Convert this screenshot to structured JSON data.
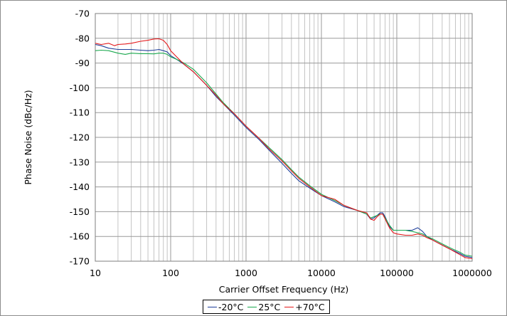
{
  "chart_data": {
    "type": "line",
    "title": "",
    "xlabel": "Carrier Offset Frequency (Hz)",
    "ylabel": "Phase Noise (dBc/Hz)",
    "x_scale": "log",
    "xlim": [
      10,
      1000000
    ],
    "ylim": [
      -170,
      -70
    ],
    "x_ticks": [
      10,
      100,
      1000,
      10000,
      100000,
      1000000
    ],
    "x_tick_labels": [
      "10",
      "100",
      "1000",
      "10000",
      "100000",
      "1000000"
    ],
    "y_ticks": [
      -70,
      -80,
      -90,
      -100,
      -110,
      -120,
      -130,
      -140,
      -150,
      -160,
      -170
    ],
    "y_tick_labels": [
      "-70",
      "-80",
      "-90",
      "-100",
      "-110",
      "-120",
      "-130",
      "-140",
      "-150",
      "-160",
      "-170"
    ],
    "grid": true,
    "legend_position": "bottom-center",
    "series": [
      {
        "name": "-20°C",
        "color": "#1f3f9a",
        "points": [
          [
            10,
            -82.5
          ],
          [
            12,
            -83
          ],
          [
            15,
            -84
          ],
          [
            20,
            -84.5
          ],
          [
            30,
            -84.5
          ],
          [
            40,
            -84.8
          ],
          [
            50,
            -85
          ],
          [
            60,
            -84.8
          ],
          [
            70,
            -84.5
          ],
          [
            80,
            -85
          ],
          [
            90,
            -85.5
          ],
          [
            100,
            -87
          ],
          [
            120,
            -88.5
          ],
          [
            150,
            -90.5
          ],
          [
            200,
            -93.5
          ],
          [
            300,
            -99
          ],
          [
            400,
            -103.5
          ],
          [
            500,
            -106.5
          ],
          [
            700,
            -111
          ],
          [
            1000,
            -116
          ],
          [
            1500,
            -121
          ],
          [
            2000,
            -125
          ],
          [
            3000,
            -130.5
          ],
          [
            4000,
            -134.5
          ],
          [
            5000,
            -137.5
          ],
          [
            7000,
            -140.5
          ],
          [
            10000,
            -143.5
          ],
          [
            15000,
            -146
          ],
          [
            20000,
            -148
          ],
          [
            30000,
            -149.5
          ],
          [
            40000,
            -151
          ],
          [
            45000,
            -153
          ],
          [
            50000,
            -152.5
          ],
          [
            55000,
            -151.5
          ],
          [
            60000,
            -150.5
          ],
          [
            65000,
            -150.5
          ],
          [
            70000,
            -152
          ],
          [
            80000,
            -156
          ],
          [
            90000,
            -157.5
          ],
          [
            100000,
            -157.5
          ],
          [
            130000,
            -157.5
          ],
          [
            160000,
            -157.5
          ],
          [
            190000,
            -156.5
          ],
          [
            220000,
            -158
          ],
          [
            250000,
            -160
          ],
          [
            300000,
            -161.5
          ],
          [
            400000,
            -163.5
          ],
          [
            500000,
            -165
          ],
          [
            700000,
            -167
          ],
          [
            800000,
            -168
          ],
          [
            1000000,
            -168.5
          ]
        ]
      },
      {
        "name": "25°C",
        "color": "#1aa84e",
        "points": [
          [
            10,
            -85
          ],
          [
            12,
            -84.8
          ],
          [
            15,
            -85
          ],
          [
            20,
            -86
          ],
          [
            25,
            -86.5
          ],
          [
            30,
            -86
          ],
          [
            40,
            -86.2
          ],
          [
            50,
            -86.2
          ],
          [
            60,
            -86.3
          ],
          [
            70,
            -86
          ],
          [
            80,
            -86
          ],
          [
            90,
            -86.5
          ],
          [
            100,
            -87.5
          ],
          [
            120,
            -88.5
          ],
          [
            150,
            -90
          ],
          [
            200,
            -92.5
          ],
          [
            300,
            -98
          ],
          [
            400,
            -102.5
          ],
          [
            500,
            -106
          ],
          [
            700,
            -110.5
          ],
          [
            1000,
            -115.5
          ],
          [
            1500,
            -120.5
          ],
          [
            2000,
            -124
          ],
          [
            3000,
            -129
          ],
          [
            4000,
            -133
          ],
          [
            5000,
            -136
          ],
          [
            7000,
            -139.5
          ],
          [
            10000,
            -143
          ],
          [
            15000,
            -145.5
          ],
          [
            20000,
            -147.5
          ],
          [
            30000,
            -149.5
          ],
          [
            40000,
            -151
          ],
          [
            45000,
            -152.5
          ],
          [
            50000,
            -152
          ],
          [
            55000,
            -151.5
          ],
          [
            60000,
            -151
          ],
          [
            65000,
            -151
          ],
          [
            70000,
            -152.5
          ],
          [
            80000,
            -155.5
          ],
          [
            90000,
            -157.5
          ],
          [
            100000,
            -157.5
          ],
          [
            130000,
            -157.5
          ],
          [
            160000,
            -158
          ],
          [
            190000,
            -158.5
          ],
          [
            220000,
            -159
          ],
          [
            250000,
            -160
          ],
          [
            300000,
            -161
          ],
          [
            400000,
            -163
          ],
          [
            500000,
            -164.5
          ],
          [
            700000,
            -166.5
          ],
          [
            800000,
            -167.5
          ],
          [
            1000000,
            -168
          ]
        ]
      },
      {
        "name": "+70°C",
        "color": "#e41a1c",
        "points": [
          [
            10,
            -82
          ],
          [
            12,
            -82.5
          ],
          [
            15,
            -82
          ],
          [
            18,
            -83
          ],
          [
            20,
            -82.5
          ],
          [
            25,
            -82.3
          ],
          [
            30,
            -82
          ],
          [
            40,
            -81.2
          ],
          [
            50,
            -80.8
          ],
          [
            60,
            -80.3
          ],
          [
            70,
            -80.2
          ],
          [
            80,
            -80.8
          ],
          [
            90,
            -82.5
          ],
          [
            100,
            -85
          ],
          [
            120,
            -87.5
          ],
          [
            150,
            -90.5
          ],
          [
            200,
            -93.5
          ],
          [
            300,
            -99
          ],
          [
            400,
            -103
          ],
          [
            500,
            -106.5
          ],
          [
            700,
            -110.5
          ],
          [
            1000,
            -115.5
          ],
          [
            1500,
            -120.5
          ],
          [
            2000,
            -124.5
          ],
          [
            3000,
            -129.5
          ],
          [
            4000,
            -133.5
          ],
          [
            5000,
            -136.5
          ],
          [
            7000,
            -140
          ],
          [
            10000,
            -143.5
          ],
          [
            15000,
            -145
          ],
          [
            20000,
            -147.5
          ],
          [
            30000,
            -149.5
          ],
          [
            40000,
            -150.5
          ],
          [
            45000,
            -153
          ],
          [
            50000,
            -153.5
          ],
          [
            55000,
            -152
          ],
          [
            60000,
            -151
          ],
          [
            65000,
            -151
          ],
          [
            70000,
            -153
          ],
          [
            80000,
            -156.5
          ],
          [
            90000,
            -158.5
          ],
          [
            100000,
            -159
          ],
          [
            130000,
            -159.5
          ],
          [
            160000,
            -159.5
          ],
          [
            190000,
            -159
          ],
          [
            220000,
            -159.5
          ],
          [
            250000,
            -160.5
          ],
          [
            300000,
            -161.5
          ],
          [
            400000,
            -163.5
          ],
          [
            500000,
            -165
          ],
          [
            700000,
            -167.5
          ],
          [
            800000,
            -168.5
          ],
          [
            1000000,
            -169
          ]
        ]
      }
    ]
  }
}
